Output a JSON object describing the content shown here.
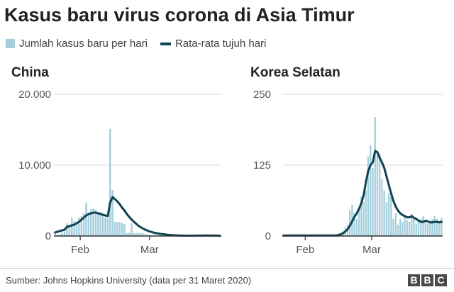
{
  "title": "Kasus baru virus corona di Asia Timur",
  "legend": {
    "bars_label": "Jumlah kasus baru per hari",
    "line_label": "Rata-rata tujuh hari"
  },
  "colors": {
    "bar": "#a6cfdd",
    "line": "#0f4455",
    "axis": "#333333",
    "grid": "#d9d9d9",
    "tick_text": "#555555"
  },
  "source": "Sumber: Johns Hopkins University (data per 31 Maret 2020)",
  "logo": [
    "B",
    "B",
    "C"
  ],
  "chart_data": [
    {
      "type": "bar",
      "title": "China",
      "ylim": [
        0,
        20000
      ],
      "yticks": [
        0,
        10000,
        20000
      ],
      "ytick_labels": [
        "0",
        "10.000",
        "20.000"
      ],
      "xticks": [
        {
          "day": 11,
          "label": "Feb"
        },
        {
          "day": 40,
          "label": "Mar"
        }
      ],
      "grid": true,
      "daily": [
        550,
        210,
        260,
        480,
        650,
        1800,
        1450,
        2600,
        2100,
        2000,
        2600,
        2800,
        3200,
        4700,
        3200,
        3800,
        3900,
        3700,
        3100,
        3400,
        3000,
        2600,
        2500,
        15100,
        6500,
        2000,
        2000,
        2000,
        1800,
        1700,
        400,
        450,
        1800,
        400,
        400,
        500,
        400,
        400,
        250,
        200,
        150,
        160,
        120,
        140,
        100,
        130,
        110,
        60,
        40,
        20,
        30,
        20,
        30,
        20,
        40,
        40,
        60,
        40,
        70,
        80,
        70,
        50,
        80,
        100,
        60,
        50,
        40,
        60,
        30,
        20
      ],
      "avg": [
        500,
        600,
        700,
        800,
        900,
        1300,
        1400,
        1500,
        1600,
        1800,
        2000,
        2300,
        2600,
        2900,
        3100,
        3200,
        3300,
        3300,
        3200,
        3100,
        3000,
        2900,
        2800,
        4700,
        5500,
        5200,
        4900,
        4500,
        4000,
        3600,
        3100,
        2700,
        2300,
        2000,
        1700,
        1400,
        1200,
        1000,
        850,
        700,
        600,
        500,
        420,
        360,
        300,
        260,
        220,
        180,
        150,
        120,
        100,
        80,
        70,
        60,
        50,
        50,
        50,
        50,
        50,
        55,
        60,
        60,
        65,
        70,
        70,
        65,
        60,
        55,
        50,
        45
      ]
    },
    {
      "type": "bar",
      "title": "Korea Selatan",
      "ylim": [
        0,
        250
      ],
      "yticks": [
        0,
        125,
        250
      ],
      "ytick_labels": [
        "0",
        "125",
        "250"
      ],
      "xticks": [
        {
          "day": 10,
          "label": "Feb"
        },
        {
          "day": 39,
          "label": "Mar"
        }
      ],
      "grid": true,
      "daily": [
        0,
        0,
        1,
        0,
        2,
        1,
        0,
        1,
        0,
        1,
        0,
        1,
        0,
        1,
        0,
        0,
        1,
        0,
        2,
        0,
        1,
        2,
        1,
        0,
        3,
        4,
        8,
        15,
        20,
        45,
        55,
        40,
        30,
        45,
        70,
        60,
        80,
        140,
        160,
        120,
        210,
        150,
        145,
        100,
        80,
        60,
        75,
        70,
        30,
        40,
        20,
        30,
        25,
        35,
        28,
        25,
        40,
        30,
        22,
        26,
        30,
        35,
        28,
        22,
        25,
        30,
        35,
        30,
        25,
        32
      ],
      "avg": [
        1,
        1,
        1,
        1,
        1,
        1,
        1,
        1,
        1,
        1,
        1,
        1,
        1,
        1,
        1,
        1,
        1,
        1,
        1,
        1,
        1,
        1,
        1,
        1,
        2,
        3,
        5,
        8,
        12,
        18,
        26,
        34,
        40,
        48,
        58,
        72,
        95,
        115,
        125,
        130,
        150,
        148,
        138,
        130,
        120,
        105,
        90,
        75,
        62,
        52,
        45,
        40,
        37,
        35,
        33,
        33,
        35,
        32,
        30,
        27,
        25,
        25,
        27,
        26,
        24,
        24,
        25,
        25,
        24,
        25
      ]
    }
  ]
}
